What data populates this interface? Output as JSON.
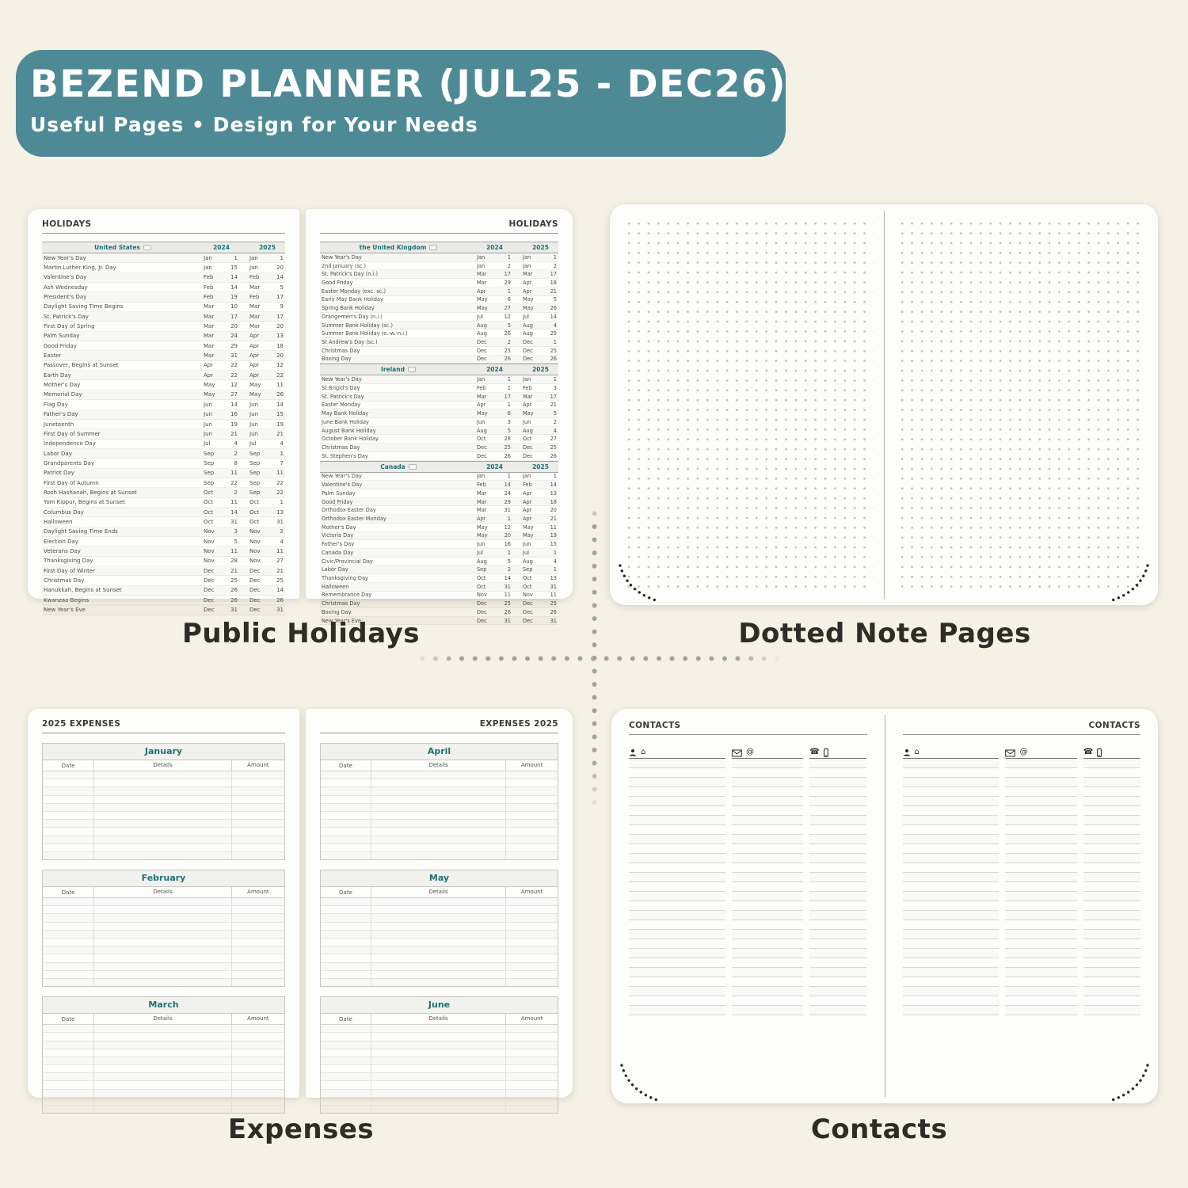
{
  "banner": {
    "title": "BEZEND PLANNER (JUL25 - DEC26)",
    "subtitle": "Useful Pages  •  Design for Your Needs",
    "bg_color": "#4d8a95"
  },
  "captions": {
    "holidays": "Public Holidays",
    "dotted": "Dotted Note Pages",
    "expenses": "Expenses",
    "contacts": "Contacts"
  },
  "colors": {
    "accent_teal": "#1e7178",
    "banner_teal": "#4d8a95",
    "background_cream": "#f5f1e5"
  },
  "holidays": {
    "page_title": "HOLIDAYS",
    "years": [
      "2024",
      "2025"
    ],
    "left_sections": [
      {
        "country": "United States",
        "flag": "us-flag-icon",
        "rows": [
          [
            "New Year's Day",
            "Jan",
            "1",
            "Jan",
            "1"
          ],
          [
            "Martin Luther King, Jr. Day",
            "Jan",
            "15",
            "Jan",
            "20"
          ],
          [
            "Valentine's Day",
            "Feb",
            "14",
            "Feb",
            "14"
          ],
          [
            "Ash Wednesday",
            "Feb",
            "14",
            "Mar",
            "5"
          ],
          [
            "President's Day",
            "Feb",
            "19",
            "Feb",
            "17"
          ],
          [
            "Daylight Saving Time Begins",
            "Mar",
            "10",
            "Mar",
            "9"
          ],
          [
            "St. Patrick's Day",
            "Mar",
            "17",
            "Mar",
            "17"
          ],
          [
            "First Day of Spring",
            "Mar",
            "20",
            "Mar",
            "20"
          ],
          [
            "Palm Sunday",
            "Mar",
            "24",
            "Apr",
            "13"
          ],
          [
            "Good Friday",
            "Mar",
            "29",
            "Apr",
            "18"
          ],
          [
            "Easter",
            "Mar",
            "31",
            "Apr",
            "20"
          ],
          [
            "Passover, Begins at Sunset",
            "Apr",
            "22",
            "Apr",
            "12"
          ],
          [
            "Earth Day",
            "Apr",
            "22",
            "Apr",
            "22"
          ],
          [
            "Mother's Day",
            "May",
            "12",
            "May",
            "11"
          ],
          [
            "Memorial Day",
            "May",
            "27",
            "May",
            "26"
          ],
          [
            "Flag Day",
            "Jun",
            "14",
            "Jun",
            "14"
          ],
          [
            "Father's Day",
            "Jun",
            "16",
            "Jun",
            "15"
          ],
          [
            "Juneteenth",
            "Jun",
            "19",
            "Jun",
            "19"
          ],
          [
            "First Day of Summer",
            "Jun",
            "21",
            "Jun",
            "21"
          ],
          [
            "Independence Day",
            "Jul",
            "4",
            "Jul",
            "4"
          ],
          [
            "Labor Day",
            "Sep",
            "2",
            "Sep",
            "1"
          ],
          [
            "Grandparents Day",
            "Sep",
            "8",
            "Sep",
            "7"
          ],
          [
            "Patriot Day",
            "Sep",
            "11",
            "Sep",
            "11"
          ],
          [
            "First Day of Autumn",
            "Sep",
            "22",
            "Sep",
            "22"
          ],
          [
            "Rosh Hashanah, Begins at Sunset",
            "Oct",
            "2",
            "Sep",
            "22"
          ],
          [
            "Yom Kippur, Begins at Sunset",
            "Oct",
            "11",
            "Oct",
            "1"
          ],
          [
            "Columbus Day",
            "Oct",
            "14",
            "Oct",
            "13"
          ],
          [
            "Halloween",
            "Oct",
            "31",
            "Oct",
            "31"
          ],
          [
            "Daylight Saving Time Ends",
            "Nov",
            "3",
            "Nov",
            "2"
          ],
          [
            "Election Day",
            "Nov",
            "5",
            "Nov",
            "4"
          ],
          [
            "Veterans Day",
            "Nov",
            "11",
            "Nov",
            "11"
          ],
          [
            "Thanksgiving Day",
            "Nov",
            "28",
            "Nov",
            "27"
          ],
          [
            "First Day of Winter",
            "Dec",
            "21",
            "Dec",
            "21"
          ],
          [
            "Christmas Day",
            "Dec",
            "25",
            "Dec",
            "25"
          ],
          [
            "Hanukkah, Begins at Sunset",
            "Dec",
            "26",
            "Dec",
            "14"
          ],
          [
            "Kwanzaa Begins",
            "Dec",
            "26",
            "Dec",
            "26"
          ],
          [
            "New Year's Eve",
            "Dec",
            "31",
            "Dec",
            "31"
          ]
        ]
      }
    ],
    "right_sections": [
      {
        "country": "the United Kingdom",
        "flag": "uk-flag-icon",
        "rows": [
          [
            "New Year's Day",
            "Jan",
            "1",
            "Jan",
            "1"
          ],
          [
            "2nd January (sc.)",
            "Jan",
            "2",
            "Jan",
            "2"
          ],
          [
            "St. Patrick's Day (n.i.)",
            "Mar",
            "17",
            "Mar",
            "17"
          ],
          [
            "Good Friday",
            "Mar",
            "29",
            "Apr",
            "18"
          ],
          [
            "Easter Monday (exc. sc.)",
            "Apr",
            "1",
            "Apr",
            "21"
          ],
          [
            "Early May Bank Holiday",
            "May",
            "6",
            "May",
            "5"
          ],
          [
            "Spring Bank Holiday",
            "May",
            "27",
            "May",
            "26"
          ],
          [
            "Orangemen's Day (n.i.)",
            "Jul",
            "12",
            "Jul",
            "14"
          ],
          [
            "Summer Bank Holiday (sc.)",
            "Aug",
            "5",
            "Aug",
            "4"
          ],
          [
            "Summer Bank Holiday (e.-w.-n.i.)",
            "Aug",
            "26",
            "Aug",
            "25"
          ],
          [
            "St Andrew's Day (sc.)",
            "Dec",
            "2",
            "Dec",
            "1"
          ],
          [
            "Christmas Day",
            "Dec",
            "25",
            "Dec",
            "25"
          ],
          [
            "Boxing Day",
            "Dec",
            "26",
            "Dec",
            "26"
          ]
        ]
      },
      {
        "country": "Ireland",
        "flag": "ireland-flag-icon",
        "rows": [
          [
            "New Year's Day",
            "Jan",
            "1",
            "Jan",
            "1"
          ],
          [
            "St Brigid's Day",
            "Feb",
            "1",
            "Feb",
            "3"
          ],
          [
            "St. Patrick's Day",
            "Mar",
            "17",
            "Mar",
            "17"
          ],
          [
            "Easter Monday",
            "Apr",
            "1",
            "Apr",
            "21"
          ],
          [
            "May Bank Holiday",
            "May",
            "6",
            "May",
            "5"
          ],
          [
            "June Bank Holiday",
            "Jun",
            "3",
            "Jun",
            "2"
          ],
          [
            "August Bank Holiday",
            "Aug",
            "5",
            "Aug",
            "4"
          ],
          [
            "October Bank Holiday",
            "Oct",
            "28",
            "Oct",
            "27"
          ],
          [
            "Christmas Day",
            "Dec",
            "25",
            "Dec",
            "25"
          ],
          [
            "St. Stephen's Day",
            "Dec",
            "26",
            "Dec",
            "26"
          ]
        ]
      },
      {
        "country": "Canada",
        "flag": "canada-flag-icon",
        "rows": [
          [
            "New Year's Day",
            "Jan",
            "1",
            "Jan",
            "1"
          ],
          [
            "Valentine's Day",
            "Feb",
            "14",
            "Feb",
            "14"
          ],
          [
            "Palm Sunday",
            "Mar",
            "24",
            "Apr",
            "13"
          ],
          [
            "Good Friday",
            "Mar",
            "29",
            "Apr",
            "18"
          ],
          [
            "Orthodox Easter Day",
            "Mar",
            "31",
            "Apr",
            "20"
          ],
          [
            "Orthodox Easter Monday",
            "Apr",
            "1",
            "Apr",
            "21"
          ],
          [
            "Mother's Day",
            "May",
            "12",
            "May",
            "11"
          ],
          [
            "Victoria Day",
            "May",
            "20",
            "May",
            "19"
          ],
          [
            "Father's Day",
            "Jun",
            "16",
            "Jun",
            "15"
          ],
          [
            "Canada Day",
            "Jul",
            "1",
            "Jul",
            "1"
          ],
          [
            "Civic/Provincial Day",
            "Aug",
            "5",
            "Aug",
            "4"
          ],
          [
            "Labor Day",
            "Sep",
            "2",
            "Sep",
            "1"
          ],
          [
            "Thanksgiving Day",
            "Oct",
            "14",
            "Oct",
            "13"
          ],
          [
            "Halloween",
            "Oct",
            "31",
            "Oct",
            "31"
          ],
          [
            "Remembrance Day",
            "Nov",
            "11",
            "Nov",
            "11"
          ],
          [
            "Christmas Day",
            "Dec",
            "25",
            "Dec",
            "25"
          ],
          [
            "Boxing Day",
            "Dec",
            "26",
            "Dec",
            "26"
          ],
          [
            "New Year's Eve",
            "Dec",
            "31",
            "Dec",
            "31"
          ]
        ]
      }
    ]
  },
  "expenses": {
    "left_title": "2025 EXPENSES",
    "right_title": "EXPENSES 2025",
    "columns": [
      "Date",
      "Details",
      "Amount"
    ],
    "left_months": [
      "January",
      "February",
      "March"
    ],
    "right_months": [
      "April",
      "May",
      "June"
    ],
    "empty_rows_per_table": 11
  },
  "contacts": {
    "title": "CONTACTS",
    "columns": [
      {
        "icons": [
          "person",
          "home"
        ]
      },
      {
        "icons": [
          "mail",
          "at"
        ]
      },
      {
        "icons": [
          "phone",
          "mobile"
        ]
      }
    ],
    "ruled_lines_per_column": 27
  }
}
